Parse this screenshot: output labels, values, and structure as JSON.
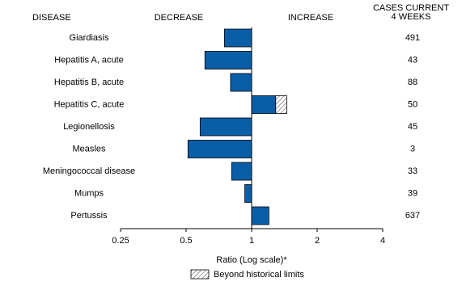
{
  "chart_data": {
    "type": "bar",
    "orientation": "horizontal",
    "x_log_scale": true,
    "column_headers": {
      "category": "DISEASE",
      "decrease": "DECREASE",
      "increase": "INCREASE",
      "cases": [
        "CASES CURRENT",
        "4 WEEKS"
      ]
    },
    "categories": [
      "Giardiasis",
      "Hepatitis A, acute",
      "Hepatitis B, acute",
      "Hepatitis C, acute",
      "Legionellosis",
      "Measles",
      "Meningococcal disease",
      "Mumps",
      "Pertussis"
    ],
    "values": [
      0.75,
      0.61,
      0.8,
      1.45,
      0.58,
      0.51,
      0.81,
      0.93,
      1.2
    ],
    "historical_limits": [
      null,
      null,
      null,
      1.29,
      null,
      null,
      null,
      null,
      null
    ],
    "cases": [
      491,
      43,
      88,
      50,
      45,
      3,
      33,
      39,
      637
    ],
    "color": "#0a5ea8",
    "xlabel": "Ratio (Log scale)*",
    "legend_label": "Beyond historical limits",
    "xlim": [
      0.25,
      4
    ],
    "xticks": [
      0.25,
      0.5,
      1,
      2,
      4
    ]
  }
}
